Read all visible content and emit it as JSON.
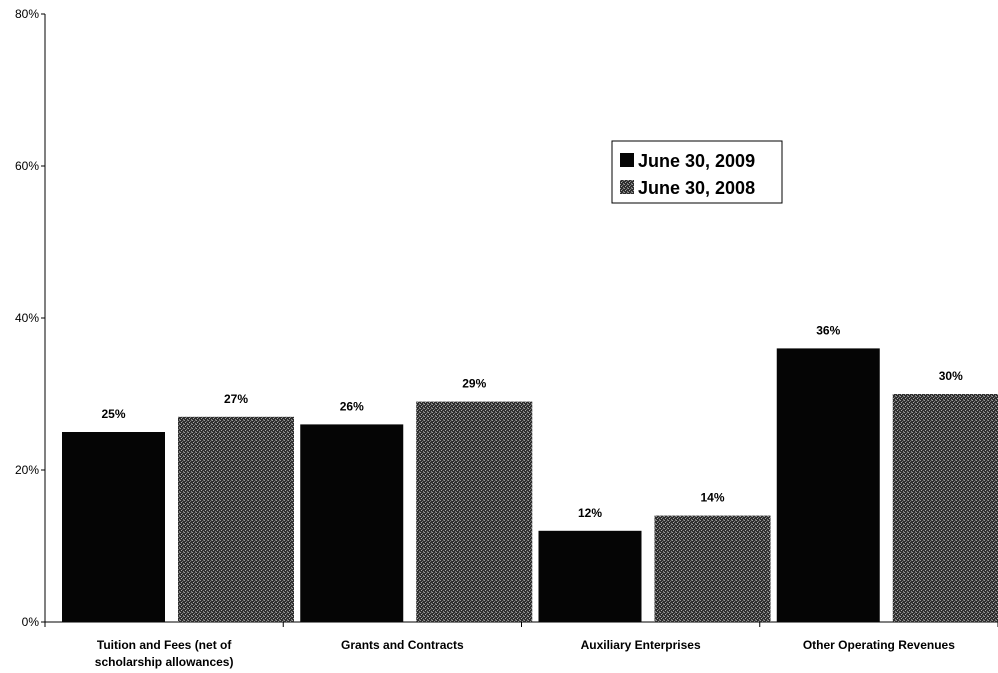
{
  "colors": {
    "series_2009": "#050505",
    "series_2008": "#4a4a4a",
    "axis": "#000000"
  },
  "chart_data": {
    "type": "bar",
    "categories": [
      [
        "Tuition and Fees (net of",
        "scholarship allowances)"
      ],
      [
        "Grants and Contracts"
      ],
      [
        "Auxiliary Enterprises"
      ],
      [
        "Other Operating Revenues"
      ]
    ],
    "series": [
      {
        "name": "June 30, 2009",
        "values": [
          25,
          26,
          12,
          36
        ],
        "labels": [
          "25%",
          "26%",
          "12%",
          "36%"
        ],
        "pattern": "solid"
      },
      {
        "name": "June 30, 2008",
        "values": [
          27,
          29,
          14,
          30
        ],
        "labels": [
          "27%",
          "29%",
          "14%",
          "30%"
        ],
        "pattern": "stipple"
      }
    ],
    "y_ticks": [
      "0%",
      "20%",
      "40%",
      "60%",
      "80%"
    ],
    "ylim": [
      0,
      80
    ],
    "legend_position": "upper-right of center",
    "grid": false
  }
}
